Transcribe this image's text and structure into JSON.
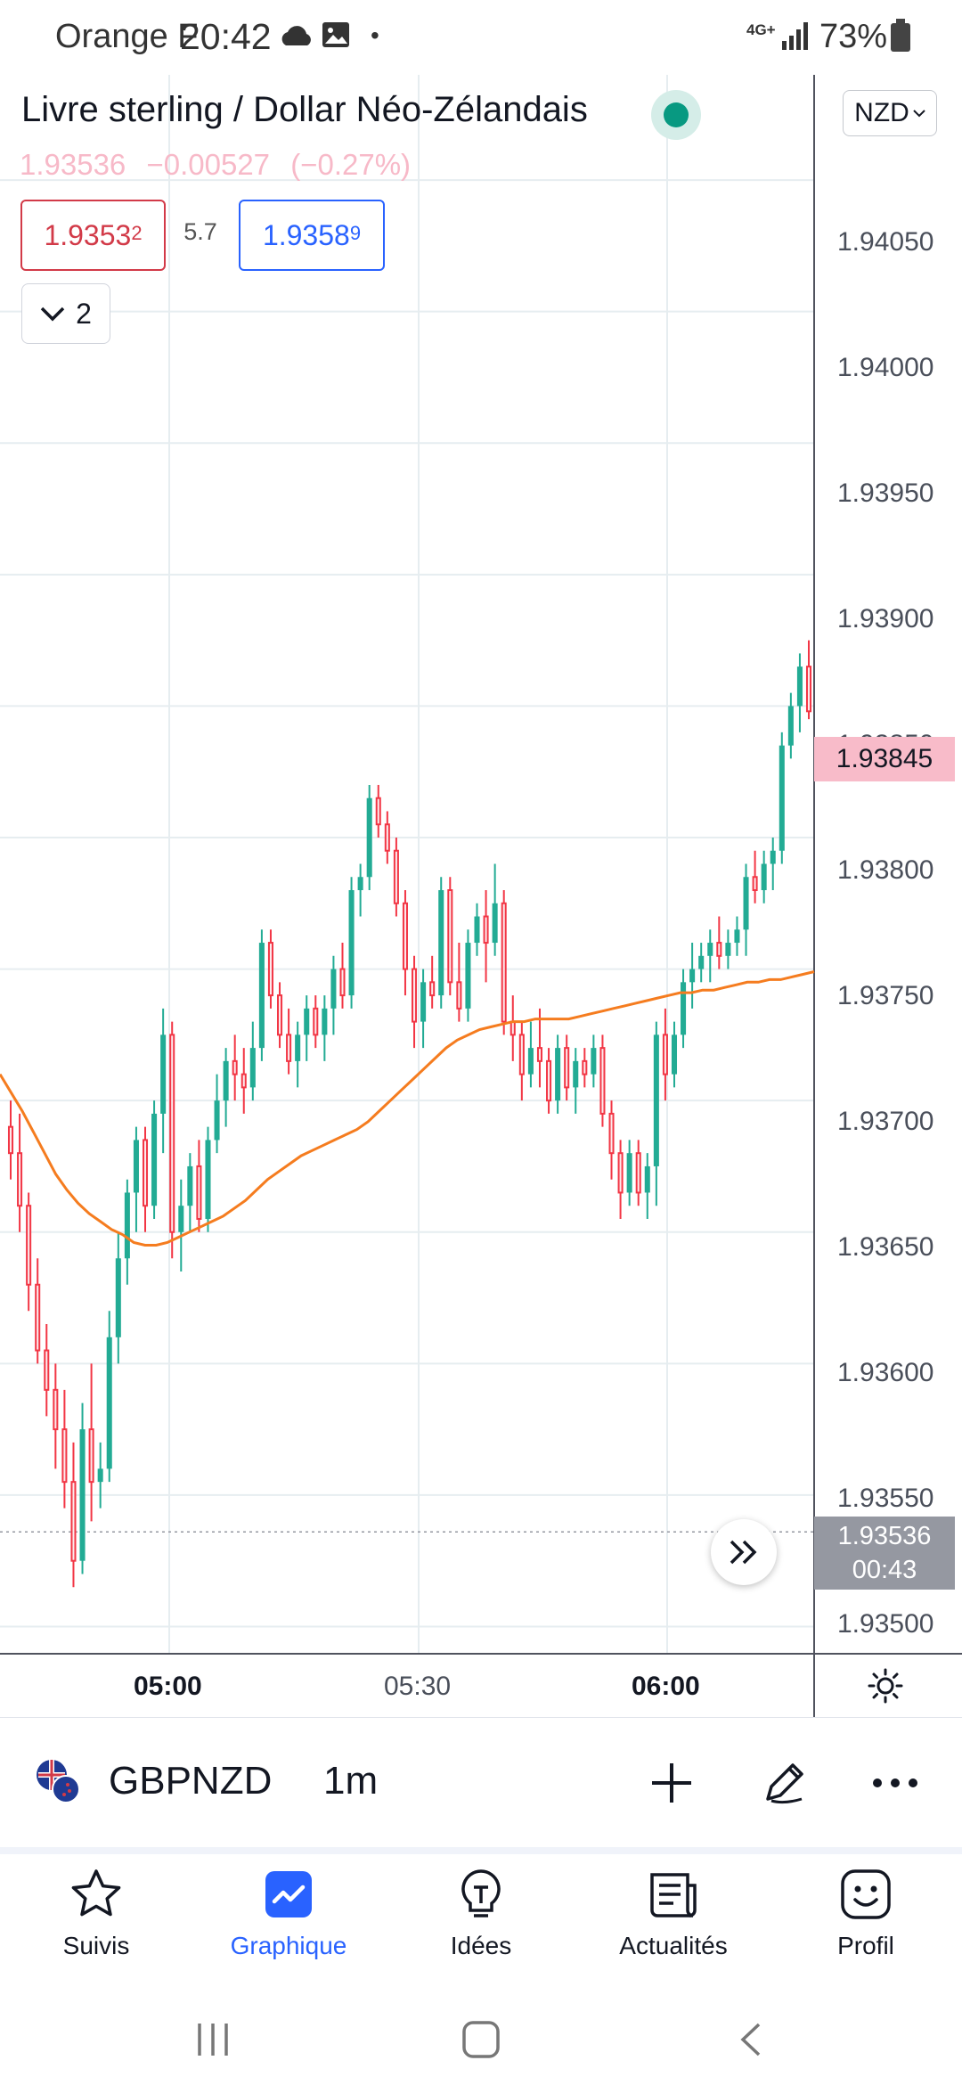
{
  "status_bar": {
    "carrier": "Orange F",
    "time": "20:42",
    "dot": "•",
    "network": "4G+",
    "battery": "73%"
  },
  "header": {
    "title": "Livre sterling / Dollar Néo-Zélandais",
    "currency": "NZD",
    "last_price": "1.93536",
    "change": "−0.00527",
    "change_percent": "(−0.27%)",
    "bid_main": "1.9353",
    "bid_small": "2",
    "spread": "5.7",
    "ask_main": "1.9358",
    "ask_small": "9",
    "indicators_count": "2"
  },
  "price_scale": {
    "labels": [
      "1.94050",
      "1.94000",
      "1.93950",
      "1.93900",
      "1.93850",
      "1.93800",
      "1.93750",
      "1.93700",
      "1.93650",
      "1.93600",
      "1.93550",
      "1.93500"
    ],
    "current_tag": "1.93845",
    "last_tag_price": "1.93536",
    "last_tag_countdown": "00:43"
  },
  "time_axis": {
    "labels": [
      {
        "text": "05:00",
        "bold": true
      },
      {
        "text": "05:30",
        "bold": false
      },
      {
        "text": "06:00",
        "bold": true
      }
    ]
  },
  "chart_data": {
    "type": "candlestick",
    "symbol": "GBPNZD",
    "interval": "1m",
    "y_range": [
      1.9349,
      1.9409
    ],
    "x_ticks": [
      "05:00",
      "05:30",
      "06:00"
    ],
    "candles_ohlc": [
      [
        1.9369,
        1.937,
        1.9367,
        1.9368
      ],
      [
        1.9368,
        1.93695,
        1.9365,
        1.9366
      ],
      [
        1.9366,
        1.93665,
        1.9362,
        1.9363
      ],
      [
        1.9363,
        1.9364,
        1.936,
        1.93605
      ],
      [
        1.93605,
        1.93615,
        1.9358,
        1.9359
      ],
      [
        1.9359,
        1.936,
        1.9356,
        1.93575
      ],
      [
        1.93575,
        1.9359,
        1.93545,
        1.93555
      ],
      [
        1.93555,
        1.9357,
        1.93515,
        1.93525
      ],
      [
        1.93525,
        1.93585,
        1.9352,
        1.93575
      ],
      [
        1.93575,
        1.936,
        1.9354,
        1.93555
      ],
      [
        1.93555,
        1.9357,
        1.93545,
        1.9356
      ],
      [
        1.9356,
        1.9362,
        1.93555,
        1.9361
      ],
      [
        1.9361,
        1.9365,
        1.936,
        1.9364
      ],
      [
        1.9364,
        1.9367,
        1.9363,
        1.93665
      ],
      [
        1.93665,
        1.9369,
        1.9365,
        1.93685
      ],
      [
        1.93685,
        1.9369,
        1.9365,
        1.9366
      ],
      [
        1.9366,
        1.937,
        1.93655,
        1.93695
      ],
      [
        1.93695,
        1.93735,
        1.9368,
        1.93725
      ],
      [
        1.93725,
        1.9373,
        1.9364,
        1.9365
      ],
      [
        1.9365,
        1.9367,
        1.93635,
        1.9366
      ],
      [
        1.9366,
        1.9368,
        1.9365,
        1.93675
      ],
      [
        1.93675,
        1.93685,
        1.9365,
        1.93655
      ],
      [
        1.93655,
        1.9369,
        1.9365,
        1.93685
      ],
      [
        1.93685,
        1.9371,
        1.9368,
        1.937
      ],
      [
        1.937,
        1.9372,
        1.9369,
        1.93715
      ],
      [
        1.93715,
        1.93725,
        1.937,
        1.9371
      ],
      [
        1.9371,
        1.9372,
        1.93695,
        1.93705
      ],
      [
        1.93705,
        1.9373,
        1.937,
        1.9372
      ],
      [
        1.9372,
        1.93765,
        1.93715,
        1.9376
      ],
      [
        1.9376,
        1.93765,
        1.93735,
        1.9374
      ],
      [
        1.9374,
        1.93745,
        1.9372,
        1.93725
      ],
      [
        1.93725,
        1.93735,
        1.9371,
        1.93715
      ],
      [
        1.93715,
        1.9373,
        1.93705,
        1.93725
      ],
      [
        1.93725,
        1.9374,
        1.93715,
        1.93735
      ],
      [
        1.93735,
        1.9374,
        1.9372,
        1.93725
      ],
      [
        1.93725,
        1.9374,
        1.93715,
        1.93735
      ],
      [
        1.93735,
        1.93755,
        1.93725,
        1.9375
      ],
      [
        1.9375,
        1.9376,
        1.93735,
        1.9374
      ],
      [
        1.9374,
        1.93785,
        1.93735,
        1.9378
      ],
      [
        1.9378,
        1.9379,
        1.9377,
        1.93785
      ],
      [
        1.93785,
        1.9382,
        1.9378,
        1.93815
      ],
      [
        1.93815,
        1.9382,
        1.938,
        1.93805
      ],
      [
        1.93805,
        1.9381,
        1.9379,
        1.93795
      ],
      [
        1.93795,
        1.938,
        1.9377,
        1.93775
      ],
      [
        1.93775,
        1.9378,
        1.9374,
        1.9375
      ],
      [
        1.9375,
        1.93755,
        1.9372,
        1.9373
      ],
      [
        1.9373,
        1.9375,
        1.9372,
        1.93745
      ],
      [
        1.93745,
        1.93755,
        1.93735,
        1.9374
      ],
      [
        1.9374,
        1.93785,
        1.93735,
        1.9378
      ],
      [
        1.9378,
        1.93785,
        1.9374,
        1.93745
      ],
      [
        1.93745,
        1.9376,
        1.9373,
        1.93735
      ],
      [
        1.93735,
        1.93765,
        1.9373,
        1.9376
      ],
      [
        1.9376,
        1.93775,
        1.93755,
        1.9377
      ],
      [
        1.9377,
        1.9378,
        1.93745,
        1.9376
      ],
      [
        1.9376,
        1.9379,
        1.93755,
        1.93775
      ],
      [
        1.93775,
        1.9378,
        1.93725,
        1.9373
      ],
      [
        1.9373,
        1.9374,
        1.93715,
        1.93725
      ],
      [
        1.93725,
        1.9373,
        1.937,
        1.9371
      ],
      [
        1.9371,
        1.9373,
        1.93705,
        1.9372
      ],
      [
        1.9372,
        1.93735,
        1.93705,
        1.93715
      ],
      [
        1.93715,
        1.9372,
        1.93695,
        1.937
      ],
      [
        1.937,
        1.93725,
        1.93695,
        1.9372
      ],
      [
        1.9372,
        1.93725,
        1.937,
        1.93705
      ],
      [
        1.93705,
        1.9372,
        1.93695,
        1.93715
      ],
      [
        1.93715,
        1.9372,
        1.93705,
        1.9371
      ],
      [
        1.9371,
        1.93725,
        1.93705,
        1.9372
      ],
      [
        1.9372,
        1.93725,
        1.9369,
        1.93695
      ],
      [
        1.93695,
        1.937,
        1.9367,
        1.9368
      ],
      [
        1.9368,
        1.93685,
        1.93655,
        1.93665
      ],
      [
        1.93665,
        1.93685,
        1.9366,
        1.9368
      ],
      [
        1.9368,
        1.93685,
        1.9366,
        1.93665
      ],
      [
        1.93665,
        1.9368,
        1.93655,
        1.93675
      ],
      [
        1.93675,
        1.9373,
        1.9366,
        1.93725
      ],
      [
        1.93725,
        1.93735,
        1.937,
        1.9371
      ],
      [
        1.9371,
        1.9373,
        1.93705,
        1.93725
      ],
      [
        1.93725,
        1.9375,
        1.9372,
        1.93745
      ],
      [
        1.93745,
        1.9376,
        1.93735,
        1.9375
      ],
      [
        1.9375,
        1.9376,
        1.93745,
        1.93755
      ],
      [
        1.93755,
        1.93765,
        1.93745,
        1.9376
      ],
      [
        1.9376,
        1.9377,
        1.9375,
        1.93755
      ],
      [
        1.93755,
        1.93765,
        1.9375,
        1.9376
      ],
      [
        1.9376,
        1.9377,
        1.93755,
        1.93765
      ],
      [
        1.93765,
        1.9379,
        1.93755,
        1.93785
      ],
      [
        1.93785,
        1.93795,
        1.93775,
        1.9378
      ],
      [
        1.9378,
        1.93795,
        1.93775,
        1.9379
      ],
      [
        1.9379,
        1.938,
        1.9378,
        1.93795
      ],
      [
        1.93795,
        1.9384,
        1.9379,
        1.93835
      ],
      [
        1.93835,
        1.93855,
        1.9383,
        1.9385
      ],
      [
        1.9385,
        1.9387,
        1.9384,
        1.93865
      ],
      [
        1.93865,
        1.93875,
        1.93845,
        1.93848
      ]
    ],
    "moving_average": [
      1.9371,
      1.93703,
      1.93696,
      1.93688,
      1.9368,
      1.93672,
      1.93666,
      1.93661,
      1.93657,
      1.93654,
      1.93651,
      1.93649,
      1.93646,
      1.93645,
      1.93645,
      1.93646,
      1.93648,
      1.9365,
      1.93652,
      1.93654,
      1.93656,
      1.93659,
      1.93662,
      1.93666,
      1.9367,
      1.93673,
      1.93676,
      1.93679,
      1.93681,
      1.93683,
      1.93685,
      1.93687,
      1.93689,
      1.93692,
      1.93696,
      1.937,
      1.93704,
      1.93708,
      1.93712,
      1.93716,
      1.9372,
      1.93723,
      1.93725,
      1.93727,
      1.93728,
      1.93729,
      1.9373,
      1.9373,
      1.93731,
      1.93731,
      1.93731,
      1.93731,
      1.93732,
      1.93733,
      1.93734,
      1.93735,
      1.93736,
      1.93737,
      1.93738,
      1.93739,
      1.9374,
      1.93741,
      1.93741,
      1.93742,
      1.93742,
      1.93743,
      1.93744,
      1.93745,
      1.93745,
      1.93746,
      1.93746,
      1.93747,
      1.93748,
      1.93749
    ],
    "last_price_line": 1.93536,
    "colors": {
      "up": "#22ab94",
      "down": "#f23645",
      "ma": "#f57c1f",
      "grid": "#e6edf0"
    }
  },
  "symbol_bar": {
    "symbol": "GBPNZD",
    "interval": "1m"
  },
  "bottom_nav": {
    "items": [
      {
        "label": "Suivis",
        "icon": "star-icon"
      },
      {
        "label": "Graphique",
        "icon": "chart-icon",
        "active": true
      },
      {
        "label": "Idées",
        "icon": "lightbulb-icon"
      },
      {
        "label": "Actualités",
        "icon": "news-icon"
      },
      {
        "label": "Profil",
        "icon": "smiley-icon"
      }
    ]
  }
}
